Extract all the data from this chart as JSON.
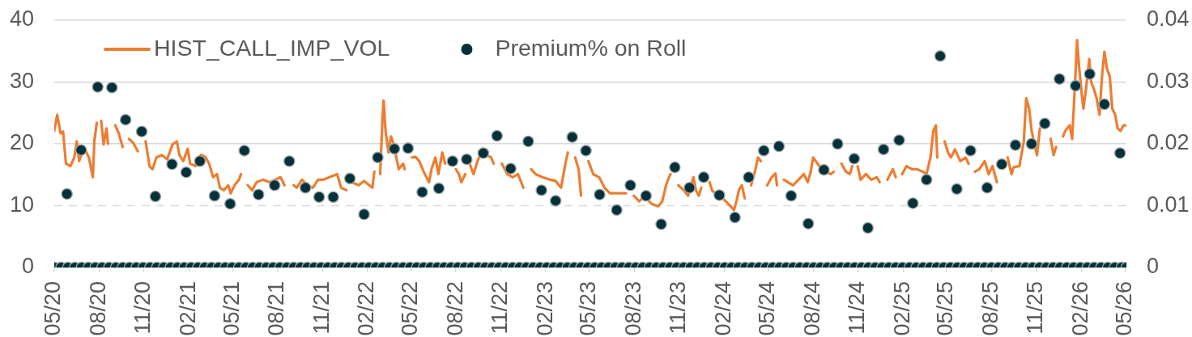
{
  "chart_data": {
    "type": "line",
    "xlim": [
      "2020-05-01",
      "2026-05-04"
    ],
    "xticks": [
      {
        "value": "2020-05-01",
        "label": "05/20"
      },
      {
        "value": "2020-08-01",
        "label": "08/20"
      },
      {
        "value": "2020-11-01",
        "label": "11/20"
      },
      {
        "value": "2021-02-01",
        "label": "02/21"
      },
      {
        "value": "2021-05-01",
        "label": "05/21"
      },
      {
        "value": "2021-08-01",
        "label": "08/21"
      },
      {
        "value": "2021-11-01",
        "label": "11/21"
      },
      {
        "value": "2022-02-01",
        "label": "02/22"
      },
      {
        "value": "2022-05-01",
        "label": "05/22"
      },
      {
        "value": "2022-08-01",
        "label": "08/22"
      },
      {
        "value": "2022-11-01",
        "label": "11/22"
      },
      {
        "value": "2023-02-01",
        "label": "02/23"
      },
      {
        "value": "2023-05-01",
        "label": "05/23"
      },
      {
        "value": "2023-08-01",
        "label": "08/23"
      },
      {
        "value": "2023-11-01",
        "label": "11/23"
      },
      {
        "value": "2024-02-01",
        "label": "02/24"
      },
      {
        "value": "2024-05-01",
        "label": "05/24"
      },
      {
        "value": "2024-08-01",
        "label": "08/24"
      },
      {
        "value": "2024-11-01",
        "label": "11/24"
      },
      {
        "value": "2025-02-01",
        "label": "02/25"
      },
      {
        "value": "2025-05-01",
        "label": "05/25"
      },
      {
        "value": "2025-08-01",
        "label": "08/25"
      },
      {
        "value": "2025-11-01",
        "label": "11/25"
      },
      {
        "value": "2026-02-01",
        "label": "02/26"
      },
      {
        "value": "2026-05-01",
        "label": "05/26"
      }
    ],
    "ylim": [
      0,
      40
    ],
    "yticks": [
      0,
      10,
      20,
      30,
      40
    ],
    "y2lim": [
      0,
      0.04
    ],
    "y2ticks": [
      0,
      0.01,
      0.02,
      0.03,
      0.04
    ],
    "grid": "y",
    "legend": "top left",
    "ref_lines": [
      {
        "axis": "y",
        "value": 10,
        "line_style": "dashed",
        "color": "#d9d9d9"
      }
    ],
    "series": [
      {
        "name": "HIST_CALL_IMP_VOL",
        "color": "#ed7d31",
        "x": [
          "2020-05-01",
          "2020-05-07",
          "2020-05-14",
          "2020-05-19",
          "2020-05-25",
          "2020-06-03",
          "2020-06-11",
          "2020-06-16",
          "2020-06-21",
          "2020-06-30",
          "2020-07-11",
          "2020-07-19",
          "2020-07-22",
          "2020-07-27",
          "2020-07-31",
          "2020-08-05",
          "2020-08-10",
          "2020-08-16",
          "2020-08-19",
          "2020-08-26",
          "2020-09-03",
          "2020-09-10",
          "2020-09-18",
          "2020-09-24",
          "2020-10-01",
          "2020-10-10",
          "2020-10-19",
          "2020-10-27",
          "2020-11-04",
          "2020-11-12",
          "2020-11-18",
          "2020-11-26",
          "2020-12-07",
          "2020-12-18",
          "2020-12-29",
          "2021-01-07",
          "2021-01-12",
          "2021-01-20",
          "2021-01-29",
          "2021-02-03",
          "2021-02-14",
          "2021-02-25",
          "2021-03-06",
          "2021-03-14",
          "2021-03-22",
          "2021-03-30",
          "2021-04-05",
          "2021-04-13",
          "2021-04-22",
          "2021-04-27",
          "2021-05-05",
          "2021-05-14",
          "2021-05-18",
          "2021-05-25",
          "2021-06-01",
          "2021-06-10",
          "2021-06-19",
          "2021-07-02",
          "2021-07-16",
          "2021-07-27",
          "2021-08-07",
          "2021-08-15",
          "2021-08-25",
          "2021-09-03",
          "2021-09-09",
          "2021-09-20",
          "2021-10-01",
          "2021-10-12",
          "2021-10-23",
          "2021-11-03",
          "2021-11-15",
          "2021-12-01",
          "2021-12-09",
          "2021-12-20",
          "2021-12-25",
          "2021-12-31",
          "2022-01-14",
          "2022-01-25",
          "2022-02-11",
          "2022-02-15",
          "2022-02-21",
          "2022-02-27",
          "2022-03-04",
          "2022-03-06",
          "2022-03-10",
          "2022-03-16",
          "2022-03-21",
          "2022-03-27",
          "2022-04-01",
          "2022-04-06",
          "2022-04-15",
          "2022-04-18",
          "2022-04-25",
          "2022-05-03",
          "2022-05-10",
          "2022-05-18",
          "2022-05-27",
          "2022-06-07",
          "2022-06-12",
          "2022-06-20",
          "2022-06-26",
          "2022-07-04",
          "2022-07-10",
          "2022-07-20",
          "2022-08-01",
          "2022-08-07",
          "2022-08-12",
          "2022-08-20",
          "2022-08-24",
          "2022-08-29",
          "2022-09-06",
          "2022-09-14",
          "2022-09-22",
          "2022-10-03",
          "2022-10-12",
          "2022-10-17",
          "2022-10-25",
          "2022-11-03",
          "2022-11-14",
          "2022-11-25",
          "2022-12-06",
          "2022-12-17",
          "2022-12-25",
          "2023-01-02",
          "2023-01-11",
          "2023-01-25",
          "2023-02-10",
          "2023-02-21",
          "2023-03-04",
          "2023-03-13",
          "2023-03-18",
          "2023-03-25",
          "2023-04-02",
          "2023-04-09",
          "2023-04-14",
          "2023-04-22",
          "2023-04-29",
          "2023-05-09",
          "2023-05-21",
          "2023-06-01",
          "2023-06-12",
          "2023-06-28",
          "2023-07-15",
          "2023-07-23",
          "2023-07-31",
          "2023-08-11",
          "2023-08-22",
          "2023-09-05",
          "2023-09-19",
          "2023-09-27",
          "2023-10-05",
          "2023-10-11",
          "2023-10-14",
          "2023-10-22",
          "2023-10-30",
          "2023-11-10",
          "2023-11-19",
          "2023-11-30",
          "2023-12-05",
          "2023-12-11",
          "2023-12-16",
          "2023-12-25",
          "2024-01-02",
          "2024-01-07",
          "2024-01-18",
          "2024-01-29",
          "2024-02-09",
          "2024-02-21",
          "2024-02-26",
          "2024-03-02",
          "2024-03-08",
          "2024-03-14",
          "2024-03-20",
          "2024-03-27",
          "2024-04-05",
          "2024-04-10",
          "2024-04-16",
          "2024-04-22",
          "2024-04-29",
          "2024-05-08",
          "2024-05-16",
          "2024-05-19",
          "2024-05-26",
          "2024-06-02",
          "2024-06-10",
          "2024-06-21",
          "2024-07-02",
          "2024-07-13",
          "2024-07-21",
          "2024-07-27",
          "2024-08-01",
          "2024-08-10",
          "2024-08-18",
          "2024-08-26",
          "2024-09-06",
          "2024-09-12",
          "2024-09-20",
          "2024-09-28",
          "2024-10-07",
          "2024-10-15",
          "2024-10-20",
          "2024-10-25",
          "2024-10-31",
          "2024-11-06",
          "2024-11-17",
          "2024-11-28",
          "2024-12-09",
          "2024-12-15",
          "2024-12-23",
          "2024-12-31",
          "2025-01-11",
          "2025-01-17",
          "2025-01-24",
          "2025-01-30",
          "2025-02-08",
          "2025-02-19",
          "2025-03-02",
          "2025-03-13",
          "2025-03-21",
          "2025-03-29",
          "2025-04-04",
          "2025-04-09",
          "2025-04-12",
          "2025-04-19",
          "2025-04-27",
          "2025-05-04",
          "2025-05-10",
          "2025-05-18",
          "2025-05-29",
          "2025-06-09",
          "2025-06-15",
          "2025-06-21",
          "2025-06-28",
          "2025-07-07",
          "2025-07-18",
          "2025-07-26",
          "2025-08-03",
          "2025-08-12",
          "2025-08-20",
          "2025-09-03",
          "2025-09-07",
          "2025-09-11",
          "2025-09-15",
          "2025-09-27",
          "2025-10-06",
          "2025-10-11",
          "2025-10-17",
          "2025-10-22",
          "2025-10-28",
          "2025-11-02",
          "2025-11-08",
          "2025-11-20",
          "2025-11-30",
          "2025-12-06",
          "2025-12-11",
          "2025-12-18",
          "2025-12-25",
          "2025-12-30",
          "2026-01-08",
          "2026-01-13",
          "2026-01-19",
          "2026-01-23",
          "2026-01-27",
          "2026-02-02",
          "2026-02-05",
          "2026-02-10",
          "2026-02-17",
          "2026-02-21",
          "2026-02-27",
          "2026-03-04",
          "2026-03-10",
          "2026-03-15",
          "2026-03-20",
          "2026-03-25",
          "2026-03-31",
          "2026-04-05",
          "2026-04-11",
          "2026-04-16",
          "2026-04-22",
          "2026-04-28",
          "2026-05-04"
        ],
        "values": [
          22.1,
          24.7,
          21.7,
          22,
          16.8,
          16.4,
          17.8,
          20.4,
          17.2,
          19.5,
          17.8,
          14.6,
          20.4,
          23.4,
          null,
          23.7,
          19.9,
          22.5,
          20,
          null,
          23,
          21.7,
          19.5,
          null,
          20.8,
          20.1,
          18.8,
          null,
          20.4,
          16.4,
          15.9,
          17.8,
          18.2,
          17.5,
          19.9,
          20.4,
          18.2,
          17.2,
          19.2,
          16.8,
          16.4,
          18.2,
          17.9,
          16.8,
          14.6,
          15.1,
          12.9,
          12.5,
          13.3,
          12,
          13.3,
          14.2,
          15.1,
          null,
          13.3,
          12.5,
          13.8,
          14.2,
          13.8,
          14.2,
          14.6,
          13.3,
          null,
          13.3,
          12.9,
          14.2,
          13.3,
          12.9,
          14.2,
          14.2,
          14.6,
          15.1,
          12.9,
          12.5,
          null,
          13.8,
          13.3,
          14,
          12.9,
          15.5,
          null,
          15.1,
          24.7,
          27,
          22.1,
          18.6,
          21.2,
          19.9,
          17.8,
          15.9,
          16.8,
          15.9,
          null,
          17.8,
          17.9,
          17.2,
          15.5,
          13.8,
          15.9,
          17.8,
          15.1,
          18.6,
          16.8,
          null,
          15.9,
          15.1,
          13.8,
          15.1,
          null,
          16.8,
          15.1,
          17.2,
          18.6,
          18.2,
          17.8,
          16.8,
          null,
          16.8,
          15.1,
          14.6,
          15.1,
          12.9,
          null,
          15.9,
          15.1,
          14.6,
          14.2,
          14,
          12.9,
          16.8,
          18.6,
          null,
          17.8,
          15.9,
          11.6,
          null,
          17.2,
          15.1,
          14.6,
          12.9,
          12,
          12,
          12,
          null,
          11.6,
          10.7,
          11.6,
          10.3,
          9.9,
          10.7,
          13.3,
          14.6,
          15.1,
          null,
          13.3,
          12.5,
          11.6,
          14.6,
          12.5,
          11.6,
          12.9,
          null,
          13.8,
          12.5,
          11.6,
          11.2,
          10.3,
          9.3,
          10.7,
          12.5,
          13.3,
          11.2,
          null,
          13.3,
          15.9,
          17.8,
          17.2,
          null,
          13.3,
          14.6,
          15.2,
          13.3,
          null,
          14.2,
          13.8,
          13.3,
          14.2,
          15.1,
          13.8,
          15.5,
          17.8,
          16.8,
          15.9,
          15.5,
          15.1,
          15.5,
          null,
          16.8,
          15.5,
          15.1,
          16.4,
          null,
          16.4,
          14.2,
          15.1,
          14.2,
          14.6,
          13.8,
          null,
          14.2,
          15.9,
          14.6,
          null,
          15.1,
          16.4,
          15.9,
          15.9,
          15.5,
          15.1,
          17.8,
          22.1,
          23,
          17.8,
          null,
          20.4,
          18.6,
          17.8,
          19.1,
          17.2,
          17.8,
          16.8,
          null,
          15.5,
          15.9,
          17.2,
          15.1,
          16.4,
          13.8,
          null,
          17.8,
          16.4,
          15.1,
          16.2,
          16.4,
          20.4,
          27.4,
          25.7,
          22.1,
          19.9,
          18.2,
          22.5,
          null,
          20.8,
          18.2,
          19.5,
          null,
          21.2,
          22.1,
          23,
          20.8,
          30,
          36.8,
          32.6,
          27.8,
          25.7,
          28.7,
          33.7,
          30,
          28.7,
          27.4,
          24.7,
          30.9,
          34.9,
          32.2,
          30.9,
          25.7,
          24.7,
          22.5,
          22.1,
          23,
          23
        ]
      },
      {
        "name": "Premium% on Roll",
        "type": "scatter",
        "color": "#06313a",
        "axis": "y2",
        "marker": "circle",
        "x": [
          "2020-05-27",
          "2020-06-25",
          "2020-07-29",
          "2020-08-27",
          "2020-09-24",
          "2020-10-27",
          "2020-11-24",
          "2020-12-28",
          "2021-01-26",
          "2021-02-23",
          "2021-03-25",
          "2021-04-26",
          "2021-05-25",
          "2021-06-23",
          "2021-07-26",
          "2021-08-25",
          "2021-09-27",
          "2021-10-25",
          "2021-11-23",
          "2021-12-27",
          "2022-01-25",
          "2022-02-22",
          "2022-03-28",
          "2022-04-25",
          "2022-05-24",
          "2022-06-27",
          "2022-07-25",
          "2022-08-23",
          "2022-09-26",
          "2022-10-24",
          "2022-11-21",
          "2022-12-27",
          "2023-01-23",
          "2023-02-21",
          "2023-03-27",
          "2023-04-24",
          "2023-05-22",
          "2023-06-26",
          "2023-07-24",
          "2023-08-25",
          "2023-09-25",
          "2023-10-23",
          "2023-11-22",
          "2023-12-21",
          "2024-01-22",
          "2024-02-23",
          "2024-03-22",
          "2024-04-22",
          "2024-05-23",
          "2024-06-17",
          "2024-07-22",
          "2024-08-23",
          "2024-09-20",
          "2024-10-24",
          "2024-11-21",
          "2024-12-23",
          "2025-01-24",
          "2025-02-21",
          "2025-03-21",
          "2025-04-18",
          "2025-05-22",
          "2025-06-19",
          "2025-07-23",
          "2025-08-22",
          "2025-09-19",
          "2025-10-22",
          "2025-11-18",
          "2025-12-18",
          "2026-01-20",
          "2026-02-18",
          "2026-03-20",
          "2026-04-21",
          "2020-05-01",
          "2020-05-15",
          "2020-05-29",
          "2020-06-12",
          "2020-06-26",
          "2020-07-10",
          "2020-07-24",
          "2020-08-07",
          "2020-08-21",
          "2020-09-04",
          "2020-09-18",
          "2020-10-02",
          "2020-10-16",
          "2020-10-30",
          "2020-11-13",
          "2020-11-27",
          "2020-12-11",
          "2020-12-25",
          "2021-01-08",
          "2021-01-22",
          "2021-02-05",
          "2021-02-19",
          "2021-03-05",
          "2021-03-19",
          "2021-04-02",
          "2021-04-16",
          "2021-04-30",
          "2021-05-14",
          "2021-05-28",
          "2021-06-11",
          "2021-06-25",
          "2021-07-09",
          "2021-07-23",
          "2021-08-06",
          "2021-08-20",
          "2021-09-03",
          "2021-09-17",
          "2021-10-01",
          "2021-10-15",
          "2021-10-29",
          "2021-11-12",
          "2021-11-26",
          "2021-12-10",
          "2021-12-24",
          "2022-01-07",
          "2022-01-21",
          "2022-02-04",
          "2022-02-18",
          "2022-03-04",
          "2022-03-18",
          "2022-04-01",
          "2022-04-15",
          "2022-04-29",
          "2022-05-13",
          "2022-05-27",
          "2022-06-10",
          "2022-06-24",
          "2022-07-08",
          "2022-07-22",
          "2022-08-05",
          "2022-08-19",
          "2022-09-02",
          "2022-09-16",
          "2022-09-30",
          "2022-10-14",
          "2022-10-28",
          "2022-11-11",
          "2022-11-25",
          "2022-12-09",
          "2022-12-23",
          "2023-01-06",
          "2023-01-20",
          "2023-02-03",
          "2023-02-17",
          "2023-03-03",
          "2023-03-17",
          "2023-03-31",
          "2023-04-14",
          "2023-04-28",
          "2023-05-12",
          "2023-05-26",
          "2023-06-09",
          "2023-06-23",
          "2023-07-07",
          "2023-07-21",
          "2023-08-04",
          "2023-08-18",
          "2023-09-01",
          "2023-09-15",
          "2023-09-29",
          "2023-10-13",
          "2023-10-27",
          "2023-11-10",
          "2023-11-24",
          "2023-12-08",
          "2023-12-22",
          "2024-01-05",
          "2024-01-19",
          "2024-02-02",
          "2024-02-16",
          "2024-03-01",
          "2024-03-15",
          "2024-03-29",
          "2024-04-12",
          "2024-04-26",
          "2024-05-10",
          "2024-05-24",
          "2024-06-07",
          "2024-06-21",
          "2024-07-05",
          "2024-07-19",
          "2024-08-02",
          "2024-08-16",
          "2024-08-30",
          "2024-09-13",
          "2024-09-27",
          "2024-10-11",
          "2024-10-25",
          "2024-11-08",
          "2024-11-22",
          "2024-12-06",
          "2024-12-20",
          "2025-01-03",
          "2025-01-17",
          "2025-01-31",
          "2025-02-14",
          "2025-02-28",
          "2025-03-14",
          "2025-03-28",
          "2025-04-11",
          "2025-04-25",
          "2025-05-09",
          "2025-05-23",
          "2025-06-06",
          "2025-06-20",
          "2025-07-04",
          "2025-07-18",
          "2025-08-01",
          "2025-08-15",
          "2025-08-29",
          "2025-09-12",
          "2025-09-26",
          "2025-10-10",
          "2025-10-24",
          "2025-11-07",
          "2025-11-21",
          "2025-12-05",
          "2025-12-19",
          "2026-01-02",
          "2026-01-16",
          "2026-01-30",
          "2026-02-13",
          "2026-02-27",
          "2026-03-13",
          "2026-03-27",
          "2026-04-10",
          "2026-04-24",
          "2026-05-04"
        ],
        "values": [
          0.0119,
          0.019,
          0.0292,
          0.0291,
          0.0239,
          0.022,
          0.0115,
          0.0167,
          0.0154,
          0.0172,
          0.0116,
          0.0103,
          0.0189,
          0.0118,
          0.0133,
          0.0172,
          0.0129,
          0.0114,
          0.0114,
          0.0144,
          0.0086,
          0.0178,
          0.0192,
          0.0193,
          0.0122,
          0.0128,
          0.0172,
          0.0175,
          0.0185,
          0.0213,
          0.016,
          0.0204,
          0.0125,
          0.0108,
          0.0211,
          0.0189,
          0.0118,
          0.0093,
          0.0133,
          0.0116,
          0.007,
          0.0162,
          0.0129,
          0.0146,
          0.0117,
          0.0081,
          0.0146,
          0.0189,
          0.0196,
          0.0116,
          0.0071,
          0.0158,
          0.02,
          0.0176,
          0.0064,
          0.0191,
          0.0206,
          0.0104,
          0.0142,
          0.0342,
          0.0127,
          0.0189,
          0.0129,
          0.0167,
          0.0198,
          0.02,
          0.0233,
          0.0305,
          0.0294,
          0.0313,
          0.0264,
          0.0185,
          0,
          0,
          0,
          0,
          0,
          0,
          0,
          0,
          0,
          0,
          0,
          0,
          0,
          0,
          0,
          0,
          0,
          0,
          0,
          0,
          0,
          0,
          0,
          0,
          0,
          0,
          0,
          0,
          0,
          0,
          0,
          0,
          0,
          0,
          0,
          0,
          0,
          0,
          0,
          0,
          0,
          0,
          0,
          0,
          0,
          0,
          0,
          0,
          0,
          0,
          0,
          0,
          0,
          0,
          0,
          0,
          0,
          0,
          0,
          0,
          0,
          0,
          0,
          0,
          0,
          0,
          0,
          0,
          0,
          0,
          0,
          0,
          0,
          0,
          0,
          0,
          0,
          0,
          0,
          0,
          0,
          0,
          0,
          0,
          0,
          0,
          0,
          0,
          0,
          0,
          0,
          0,
          0,
          0,
          0,
          0,
          0,
          0,
          0,
          0,
          0,
          0,
          0,
          0,
          0,
          0,
          0,
          0,
          0,
          0,
          0,
          0,
          0,
          0,
          0,
          0,
          0,
          0,
          0,
          0,
          0,
          0,
          0,
          0,
          0,
          0,
          0,
          0,
          0,
          0,
          0,
          0,
          0,
          0,
          0,
          0,
          0,
          0,
          0,
          0,
          0,
          0,
          0,
          0,
          0,
          0,
          0,
          0,
          0,
          0,
          0,
          0,
          0,
          0,
          0,
          0,
          0,
          0
        ]
      }
    ]
  }
}
